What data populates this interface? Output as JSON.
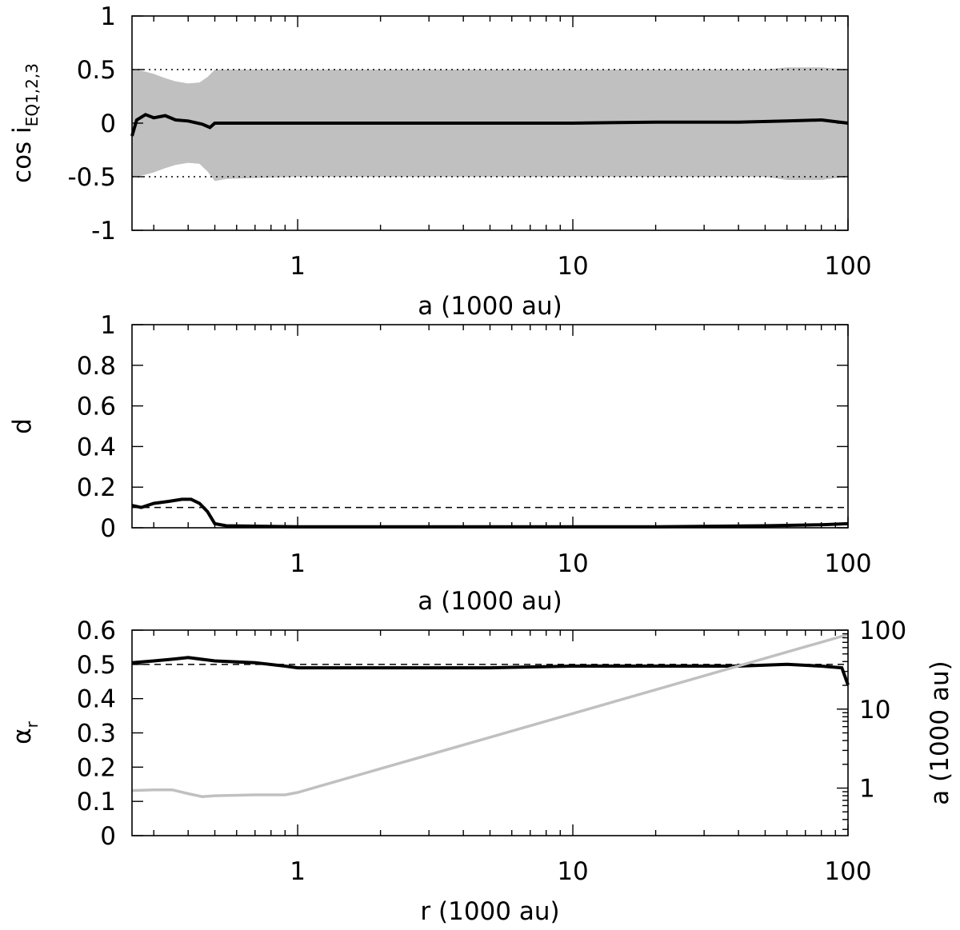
{
  "chart_data": [
    {
      "type": "line",
      "id": "panel-cos",
      "xscale": "log",
      "xlim": [
        0.25,
        100
      ],
      "ylim": [
        -1,
        1
      ],
      "xlabel": "a (1000 au)",
      "ylabel": "cos i",
      "ylabel_sub": "EQ1,2,3",
      "xticks": [
        {
          "v": 1,
          "label": "1"
        },
        {
          "v": 10,
          "label": "10"
        },
        {
          "v": 100,
          "label": "100"
        }
      ],
      "yticks": [
        {
          "v": 1,
          "label": "1"
        },
        {
          "v": 0.5,
          "label": "0.5"
        },
        {
          "v": 0,
          "label": "0"
        },
        {
          "v": -0.5,
          "label": "-0.5"
        },
        {
          "v": -1,
          "label": "-1"
        }
      ],
      "reference_lines": [
        0.5,
        -0.5
      ],
      "band": {
        "color": "#c0c0c0",
        "x": [
          0.25,
          0.27,
          0.3,
          0.33,
          0.36,
          0.4,
          0.44,
          0.47,
          0.5,
          0.55,
          1,
          10,
          50,
          60,
          80,
          100
        ],
        "upper": [
          0.5,
          0.49,
          0.46,
          0.42,
          0.39,
          0.37,
          0.38,
          0.43,
          0.5,
          0.5,
          0.5,
          0.5,
          0.5,
          0.52,
          0.52,
          0.5
        ],
        "lower": [
          -0.5,
          -0.49,
          -0.46,
          -0.42,
          -0.39,
          -0.37,
          -0.38,
          -0.45,
          -0.54,
          -0.52,
          -0.5,
          -0.5,
          -0.5,
          -0.53,
          -0.53,
          -0.5
        ]
      },
      "series": [
        {
          "color": "#000000",
          "x": [
            0.25,
            0.26,
            0.28,
            0.3,
            0.33,
            0.36,
            0.4,
            0.45,
            0.48,
            0.5,
            0.6,
            1,
            2,
            5,
            10,
            20,
            40,
            60,
            80,
            100
          ],
          "y": [
            -0.12,
            0.03,
            0.08,
            0.05,
            0.07,
            0.03,
            0.02,
            -0.01,
            -0.04,
            0.0,
            0.0,
            0.0,
            0.0,
            0.0,
            0.0,
            0.01,
            0.01,
            0.02,
            0.03,
            0.0
          ]
        }
      ]
    },
    {
      "type": "line",
      "id": "panel-d",
      "xscale": "log",
      "xlim": [
        0.25,
        100
      ],
      "ylim": [
        0,
        1
      ],
      "xlabel": "a (1000 au)",
      "ylabel": "d",
      "xticks": [
        {
          "v": 1,
          "label": "1"
        },
        {
          "v": 10,
          "label": "10"
        },
        {
          "v": 100,
          "label": "100"
        }
      ],
      "yticks": [
        {
          "v": 1,
          "label": "1"
        },
        {
          "v": 0.8,
          "label": "0.8"
        },
        {
          "v": 0.6,
          "label": "0.6"
        },
        {
          "v": 0.4,
          "label": "0.4"
        },
        {
          "v": 0.2,
          "label": "0.2"
        },
        {
          "v": 0,
          "label": "0"
        }
      ],
      "reference_lines": [
        0.1
      ],
      "series": [
        {
          "color": "#000000",
          "x": [
            0.25,
            0.27,
            0.3,
            0.34,
            0.38,
            0.41,
            0.44,
            0.47,
            0.5,
            0.55,
            1,
            5,
            20,
            50,
            80,
            100
          ],
          "y": [
            0.11,
            0.1,
            0.12,
            0.13,
            0.14,
            0.14,
            0.12,
            0.08,
            0.02,
            0.01,
            0.005,
            0.005,
            0.005,
            0.01,
            0.015,
            0.02
          ]
        }
      ]
    },
    {
      "type": "line",
      "id": "panel-alpha",
      "xscale": "log",
      "xlim": [
        0.25,
        100
      ],
      "ylim": [
        0,
        0.6
      ],
      "xlabel": "r (1000 au)",
      "ylabel": "α",
      "ylabel_sub": "r",
      "xticks": [
        {
          "v": 1,
          "label": "1"
        },
        {
          "v": 10,
          "label": "10"
        },
        {
          "v": 100,
          "label": "100"
        }
      ],
      "yticks": [
        {
          "v": 0.6,
          "label": "0.6"
        },
        {
          "v": 0.5,
          "label": "0.5"
        },
        {
          "v": 0.4,
          "label": "0.4"
        },
        {
          "v": 0.3,
          "label": "0.3"
        },
        {
          "v": 0.2,
          "label": "0.2"
        },
        {
          "v": 0.1,
          "label": "0.1"
        },
        {
          "v": 0,
          "label": "0"
        }
      ],
      "reference_lines": [
        0.5
      ],
      "y2": {
        "label": "a (1000 au)",
        "scale": "log",
        "lim": [
          0.25,
          100
        ],
        "ticks": [
          {
            "v": 100,
            "label": "100"
          },
          {
            "v": 10,
            "label": "10"
          },
          {
            "v": 1,
            "label": "1"
          }
        ]
      },
      "series": [
        {
          "color": "#000000",
          "x": [
            0.25,
            0.3,
            0.35,
            0.4,
            0.5,
            0.7,
            0.9,
            1,
            2,
            5,
            10,
            20,
            40,
            60,
            80,
            95,
            100
          ],
          "y": [
            0.505,
            0.51,
            0.515,
            0.52,
            0.51,
            0.505,
            0.495,
            0.49,
            0.49,
            0.49,
            0.495,
            0.495,
            0.495,
            0.5,
            0.495,
            0.49,
            0.44
          ]
        },
        {
          "color": "#c0c0c0",
          "axis": "y2",
          "x": [
            0.25,
            0.3,
            0.35,
            0.4,
            0.45,
            0.5,
            0.7,
            0.9,
            1,
            10,
            100
          ],
          "y": [
            0.93,
            0.95,
            0.95,
            0.85,
            0.78,
            0.8,
            0.82,
            0.82,
            0.88,
            8.8,
            88
          ]
        }
      ]
    }
  ]
}
